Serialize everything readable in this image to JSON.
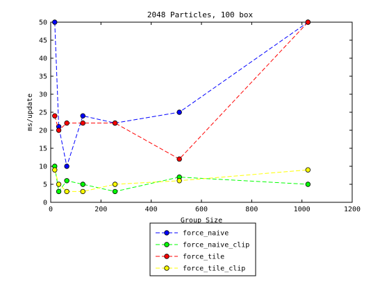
{
  "chart_data": {
    "type": "line",
    "title": "2048 Particles, 100 box",
    "xlabel": "Group Size",
    "ylabel": "ms/update",
    "xlim": [
      0,
      1200
    ],
    "ylim": [
      0,
      50
    ],
    "xticks": [
      0,
      200,
      400,
      600,
      800,
      1000,
      1200
    ],
    "yticks": [
      0,
      5,
      10,
      15,
      20,
      25,
      30,
      35,
      40,
      45,
      50
    ],
    "grid": false,
    "legend_position": "bottom-outside",
    "x": [
      16,
      32,
      64,
      128,
      256,
      512,
      1024
    ],
    "series": [
      {
        "name": "force_naive",
        "color": "#0000ff",
        "marker_fill": "#0000ff",
        "values": [
          50,
          21,
          10,
          24,
          22,
          25,
          50
        ]
      },
      {
        "name": "force_naive_clip",
        "color": "#00ff00",
        "marker_fill": "#00ff00",
        "values": [
          10,
          3,
          6,
          5,
          3,
          7,
          5
        ]
      },
      {
        "name": "force_tile",
        "color": "#ff0000",
        "marker_fill": "#ff0000",
        "values": [
          24,
          20,
          22,
          22,
          22,
          12,
          50
        ]
      },
      {
        "name": "force_tile_clip",
        "color": "#ffff00",
        "marker_fill": "#ffff00",
        "values": [
          9,
          5,
          3,
          3,
          5,
          6,
          9
        ]
      }
    ]
  }
}
